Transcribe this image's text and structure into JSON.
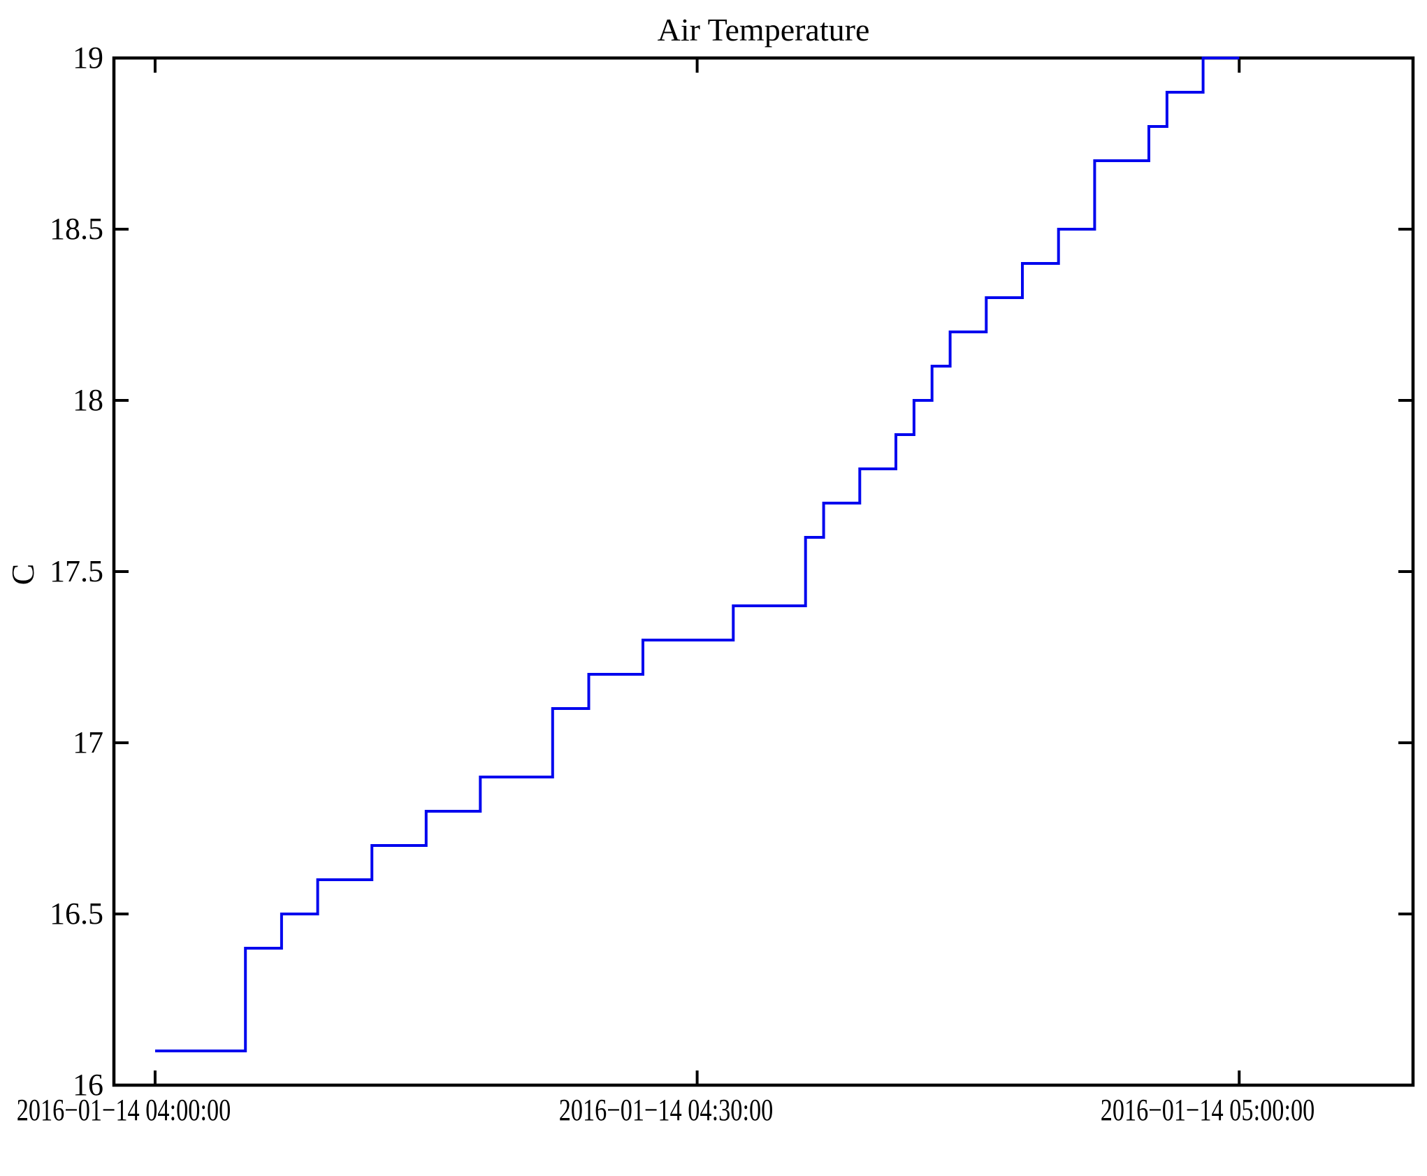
{
  "chart_data": {
    "type": "line",
    "step_mode": "post",
    "title": "Air Temperature",
    "ylabel": "C",
    "line_color": "#0005ee",
    "axis_color": "#000000",
    "legend": "none",
    "grid": false,
    "axis": {
      "x_min_minutes": -2.28,
      "x_max_minutes": 69.62,
      "y_min": 16,
      "y_max": 19,
      "x_ticks_minutes": [
        0,
        30,
        60
      ],
      "x_tick_labels": [
        "2016−01−14 04:00:00",
        "2016−01−14 04:30:00",
        "2016−01−14 05:00:00"
      ],
      "y_ticks": [
        16,
        16.5,
        17,
        17.5,
        18,
        18.5,
        19
      ],
      "y_tick_labels": [
        "16",
        "16.5",
        "17",
        "17.5",
        "18",
        "18.5",
        "19"
      ]
    },
    "series": [
      {
        "name": "air-temperature",
        "x_times": [
          "04:00",
          "04:05",
          "04:07",
          "04:09",
          "04:12",
          "04:15",
          "04:18",
          "04:22",
          "04:24",
          "04:27",
          "04:32",
          "04:36",
          "04:37",
          "04:39",
          "04:41",
          "04:42",
          "04:43",
          "04:44",
          "04:46",
          "04:48",
          "04:50",
          "04:52",
          "04:55",
          "04:56",
          "04:58",
          "05:00"
        ],
        "x_minutes": [
          0,
          5,
          7,
          9,
          12,
          15,
          18,
          22,
          24,
          27,
          32,
          36,
          37,
          39,
          41,
          42,
          43,
          44,
          46,
          48,
          50,
          52,
          55,
          56,
          58,
          60
        ],
        "values": [
          16.1,
          16.4,
          16.5,
          16.6,
          16.7,
          16.8,
          16.9,
          17.1,
          17.2,
          17.3,
          17.4,
          17.6,
          17.7,
          17.8,
          17.9,
          18.0,
          18.1,
          18.2,
          18.3,
          18.4,
          18.5,
          18.7,
          18.8,
          18.9,
          19.0,
          19.0
        ]
      }
    ]
  }
}
